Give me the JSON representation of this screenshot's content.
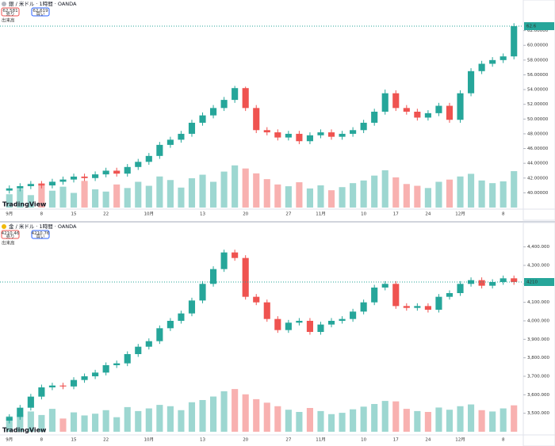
{
  "chart_data": [
    {
      "type": "candlestick",
      "title": "銀 / 米ドル · 1時間 · OANDA",
      "sell": 62.581,
      "buy": 62.619,
      "sell_label": "売り",
      "buy_label": "買い",
      "volume_label": "出来高",
      "logo": "TradingView",
      "up_color": "#26a69a",
      "down_color": "#ef5350",
      "grid": false,
      "ylim": [
        38,
        64
      ],
      "yticks": [
        {
          "value": 40,
          "label": "40.00000"
        },
        {
          "value": 42,
          "label": "42.00000"
        },
        {
          "value": 44,
          "label": "44.00000"
        },
        {
          "value": 46,
          "label": "46.00000"
        },
        {
          "value": 48,
          "label": "48.00000"
        },
        {
          "value": 50,
          "label": "50.00000"
        },
        {
          "value": 52,
          "label": "52.00000"
        },
        {
          "value": 54,
          "label": "54.00000"
        },
        {
          "value": 56,
          "label": "56.00000"
        },
        {
          "value": 58,
          "label": "58.00000"
        },
        {
          "value": 60,
          "label": "60.00000"
        },
        {
          "value": 62,
          "label": "62.00000"
        }
      ],
      "categories": [
        "9月",
        null,
        null,
        "8",
        null,
        null,
        "15",
        null,
        null,
        "22",
        null,
        null,
        null,
        "10月",
        null,
        null,
        null,
        null,
        "13",
        null,
        null,
        null,
        "20",
        null,
        null,
        null,
        "27",
        null,
        null,
        "11月",
        null,
        null,
        null,
        "10",
        null,
        null,
        "17",
        null,
        null,
        "24",
        null,
        null,
        "12月",
        null,
        null,
        null,
        "8",
        null
      ],
      "open": [
        40.3,
        40.6,
        40.9,
        41.2,
        41.0,
        41.5,
        41.8,
        42.2,
        42.0,
        42.5,
        43.0,
        42.6,
        43.5,
        44.2,
        45.0,
        46.5,
        47.2,
        48.0,
        49.5,
        50.5,
        51.5,
        52.6,
        54.2,
        51.5,
        48.5,
        48.2,
        47.5,
        48.0,
        47.0,
        47.8,
        48.2,
        47.6,
        48.0,
        48.5,
        49.5,
        51.0,
        53.5,
        51.5,
        51.0,
        50.2,
        50.8,
        51.8,
        49.9,
        53.5,
        56.5,
        57.5,
        58.0,
        58.5
      ],
      "high": [
        41.0,
        41.3,
        41.6,
        41.6,
        41.9,
        42.2,
        42.6,
        42.6,
        42.9,
        43.4,
        43.4,
        43.9,
        44.6,
        45.4,
        46.9,
        47.6,
        48.4,
        49.9,
        50.9,
        51.9,
        53.0,
        54.5,
        54.4,
        51.9,
        48.9,
        48.6,
        48.4,
        48.4,
        48.2,
        48.6,
        48.6,
        48.4,
        48.9,
        49.9,
        51.4,
        54.0,
        53.9,
        51.9,
        51.4,
        51.2,
        52.2,
        52.2,
        53.9,
        56.9,
        57.9,
        58.4,
        58.9,
        63.0
      ],
      "low": [
        39.9,
        40.2,
        40.5,
        40.6,
        40.6,
        41.1,
        41.4,
        41.6,
        41.6,
        42.1,
        42.2,
        42.2,
        43.1,
        43.8,
        44.6,
        46.1,
        46.8,
        47.6,
        49.1,
        50.1,
        51.1,
        52.2,
        51.1,
        48.1,
        47.8,
        47.1,
        47.1,
        46.6,
        46.6,
        47.4,
        47.2,
        47.2,
        47.6,
        48.1,
        49.1,
        50.6,
        51.1,
        50.6,
        49.8,
        49.8,
        50.4,
        49.5,
        49.5,
        53.1,
        56.1,
        57.1,
        57.6,
        58.1
      ],
      "close": [
        40.6,
        40.9,
        41.2,
        41.0,
        41.5,
        41.8,
        42.2,
        42.0,
        42.5,
        43.0,
        42.6,
        43.5,
        44.2,
        45.0,
        46.5,
        47.2,
        48.0,
        49.5,
        50.5,
        51.5,
        52.6,
        54.2,
        51.5,
        48.5,
        48.2,
        47.5,
        48.0,
        47.0,
        47.8,
        48.2,
        47.6,
        48.0,
        48.5,
        49.5,
        51.0,
        53.5,
        51.5,
        51.0,
        50.2,
        50.8,
        51.8,
        49.9,
        53.5,
        56.5,
        57.5,
        58.0,
        58.5,
        62.6
      ],
      "volume": [
        30,
        42,
        28,
        55,
        38,
        47,
        33,
        60,
        41,
        36,
        52,
        44,
        58,
        49,
        70,
        62,
        45,
        66,
        74,
        58,
        81,
        95,
        88,
        77,
        64,
        52,
        48,
        57,
        43,
        50,
        39,
        46,
        55,
        61,
        72,
        84,
        68,
        53,
        49,
        44,
        58,
        63,
        70,
        76,
        61,
        55,
        59,
        82
      ]
    },
    {
      "type": "candlestick",
      "title": "金 / 米ドル · 1時間 · OANDA",
      "sell": 4210.46,
      "buy": 4210.76,
      "sell_label": "売り",
      "buy_label": "買い",
      "volume_label": "出来高",
      "logo": "TradingView",
      "up_color": "#26a69a",
      "down_color": "#ef5350",
      "grid": false,
      "ylim": [
        3400,
        4450
      ],
      "yticks": [
        {
          "value": 3500,
          "label": "3,500.000"
        },
        {
          "value": 3600,
          "label": "3,600.000"
        },
        {
          "value": 3700,
          "label": "3,700.000"
        },
        {
          "value": 3800,
          "label": "3,800.000"
        },
        {
          "value": 3900,
          "label": "3,900.000"
        },
        {
          "value": 4000,
          "label": "4,000.000"
        },
        {
          "value": 4100,
          "label": "4,100.000"
        },
        {
          "value": 4200,
          "label": "4,200.000"
        },
        {
          "value": 4300,
          "label": "4,300.000"
        },
        {
          "value": 4400,
          "label": "4,400.000"
        }
      ],
      "categories": [
        "9月",
        null,
        null,
        "8",
        null,
        null,
        "15",
        null,
        null,
        "22",
        null,
        null,
        null,
        "10月",
        null,
        null,
        null,
        null,
        "13",
        null,
        null,
        null,
        "20",
        null,
        null,
        null,
        "27",
        null,
        null,
        "11月",
        null,
        null,
        null,
        "10",
        null,
        null,
        "17",
        null,
        null,
        "24",
        null,
        null,
        "12月",
        null,
        null,
        null,
        "8",
        null
      ],
      "open": [
        3460,
        3480,
        3530,
        3590,
        3640,
        3650,
        3645,
        3680,
        3700,
        3720,
        3760,
        3770,
        3820,
        3860,
        3890,
        3960,
        4000,
        4040,
        4110,
        4200,
        4280,
        4370,
        4340,
        4130,
        4100,
        4010,
        3950,
        3990,
        4000,
        3940,
        3980,
        4000,
        4010,
        4050,
        4100,
        4180,
        4200,
        4080,
        4070,
        4080,
        4060,
        4130,
        4150,
        4200,
        4220,
        4190,
        4210,
        4230
      ],
      "high": [
        3495,
        3545,
        3605,
        3655,
        3665,
        3665,
        3695,
        3715,
        3735,
        3775,
        3785,
        3835,
        3875,
        3905,
        3975,
        4015,
        4055,
        4125,
        4215,
        4295,
        4385,
        4385,
        4355,
        4145,
        4115,
        4025,
        4005,
        4015,
        4015,
        3995,
        4015,
        4025,
        4065,
        4115,
        4195,
        4215,
        4215,
        4095,
        4095,
        4095,
        4145,
        4165,
        4215,
        4235,
        4235,
        4225,
        4245,
        4245
      ],
      "low": [
        3445,
        3465,
        3515,
        3575,
        3625,
        3630,
        3630,
        3665,
        3685,
        3705,
        3745,
        3755,
        3805,
        3845,
        3875,
        3945,
        3985,
        4025,
        4095,
        4185,
        4265,
        4325,
        4115,
        4085,
        3995,
        3935,
        3935,
        3975,
        3925,
        3925,
        3965,
        3985,
        3995,
        4035,
        4085,
        4165,
        4065,
        4055,
        4055,
        4045,
        4045,
        4115,
        4135,
        4185,
        4175,
        4175,
        4195,
        4195
      ],
      "close": [
        3480,
        3530,
        3590,
        3640,
        3650,
        3645,
        3680,
        3700,
        3720,
        3760,
        3770,
        3820,
        3860,
        3890,
        3960,
        4000,
        4040,
        4110,
        4200,
        4280,
        4370,
        4340,
        4130,
        4100,
        4010,
        3950,
        3990,
        4000,
        3940,
        3980,
        4000,
        4010,
        4050,
        4100,
        4180,
        4200,
        4080,
        4070,
        4080,
        4060,
        4130,
        4150,
        4200,
        4220,
        4190,
        4210,
        4230,
        4210
      ],
      "volume": [
        35,
        40,
        46,
        38,
        52,
        30,
        44,
        37,
        41,
        49,
        33,
        56,
        47,
        53,
        61,
        58,
        49,
        67,
        72,
        80,
        92,
        97,
        85,
        74,
        66,
        58,
        50,
        45,
        54,
        47,
        40,
        43,
        51,
        57,
        63,
        70,
        69,
        52,
        47,
        45,
        55,
        50,
        58,
        62,
        49,
        46,
        53,
        60
      ]
    }
  ]
}
